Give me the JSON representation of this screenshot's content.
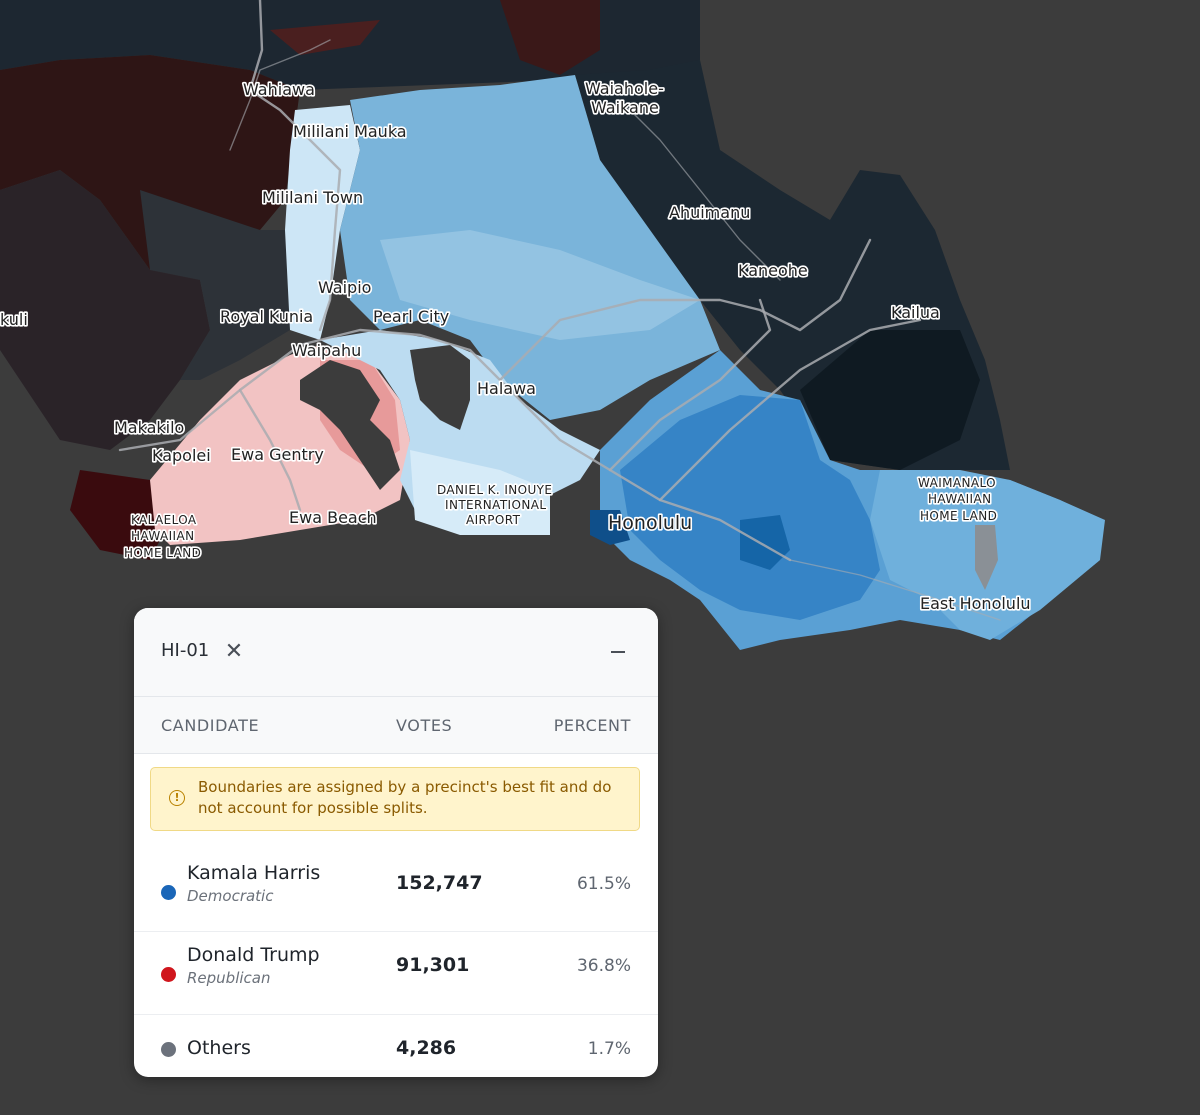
{
  "map": {
    "labels": {
      "wahiawa": "Wahiawa",
      "mililani_mauka": "Mililani Mauka",
      "mililani_town": "Mililani Town",
      "waiahole_1": "Waiahole-",
      "waiahole_2": "Waikane",
      "ahuimanu": "Ahuimanu",
      "kaneohe": "Kaneohe",
      "kailua": "Kailua",
      "waipio": "Waipio",
      "royal_kunia": "Royal Kunia",
      "pearl_city": "Pearl City",
      "waipahu": "Waipahu",
      "halawa": "Halawa",
      "makakilo": "Makakilo",
      "kapolei": "Kapolei",
      "ewa_gentry": "Ewa Gentry",
      "ewa_beach": "Ewa Beach",
      "kuli": "kuli",
      "kalaeloa_1": "KALAELOA",
      "kalaeloa_2": "HAWAIIAN",
      "kalaeloa_3": "HOME LAND",
      "airport_1": "DANIEL K. INOUYE",
      "airport_2": "INTERNATIONAL",
      "airport_3": "AIRPORT",
      "honolulu": "Honolulu",
      "waimanalo_1": "WAIMANALO",
      "waimanalo_2": "HAWAIIAN",
      "waimanalo_3": "HOME LAND",
      "east_honolulu": "East Honolulu"
    },
    "colors": {
      "background": "#3c3c3c",
      "dem_light": "#cfe6f7",
      "dem_mid": "#7db6dc",
      "dem_strong": "#3f8bc9",
      "dem_darkest": "#0f5b99",
      "rep_light": "#f6cccc",
      "rep_mid": "#e79b9b",
      "rep_dark": "#3a1616",
      "neutral_dark": "#1c2830"
    }
  },
  "panel": {
    "district": "HI-01",
    "close_icon": "close-icon",
    "minimize_icon": "minimize-icon",
    "columns": {
      "candidate": "CANDIDATE",
      "votes": "VOTES",
      "percent": "PERCENT"
    },
    "notice": {
      "icon": "info-icon",
      "icon_glyph": "!",
      "text": "Boundaries are assigned by a precinct's best fit and do not account for possible splits."
    },
    "candidates": [
      {
        "name": "Kamala Harris",
        "party": "Democratic",
        "votes": "152,747",
        "percent": "61.5%",
        "color": "#1a66b8"
      },
      {
        "name": "Donald Trump",
        "party": "Republican",
        "votes": "91,301",
        "percent": "36.8%",
        "color": "#d0161d"
      },
      {
        "name": "Others",
        "party": "",
        "votes": "4,286",
        "percent": "1.7%",
        "color": "#6c727c"
      }
    ]
  }
}
